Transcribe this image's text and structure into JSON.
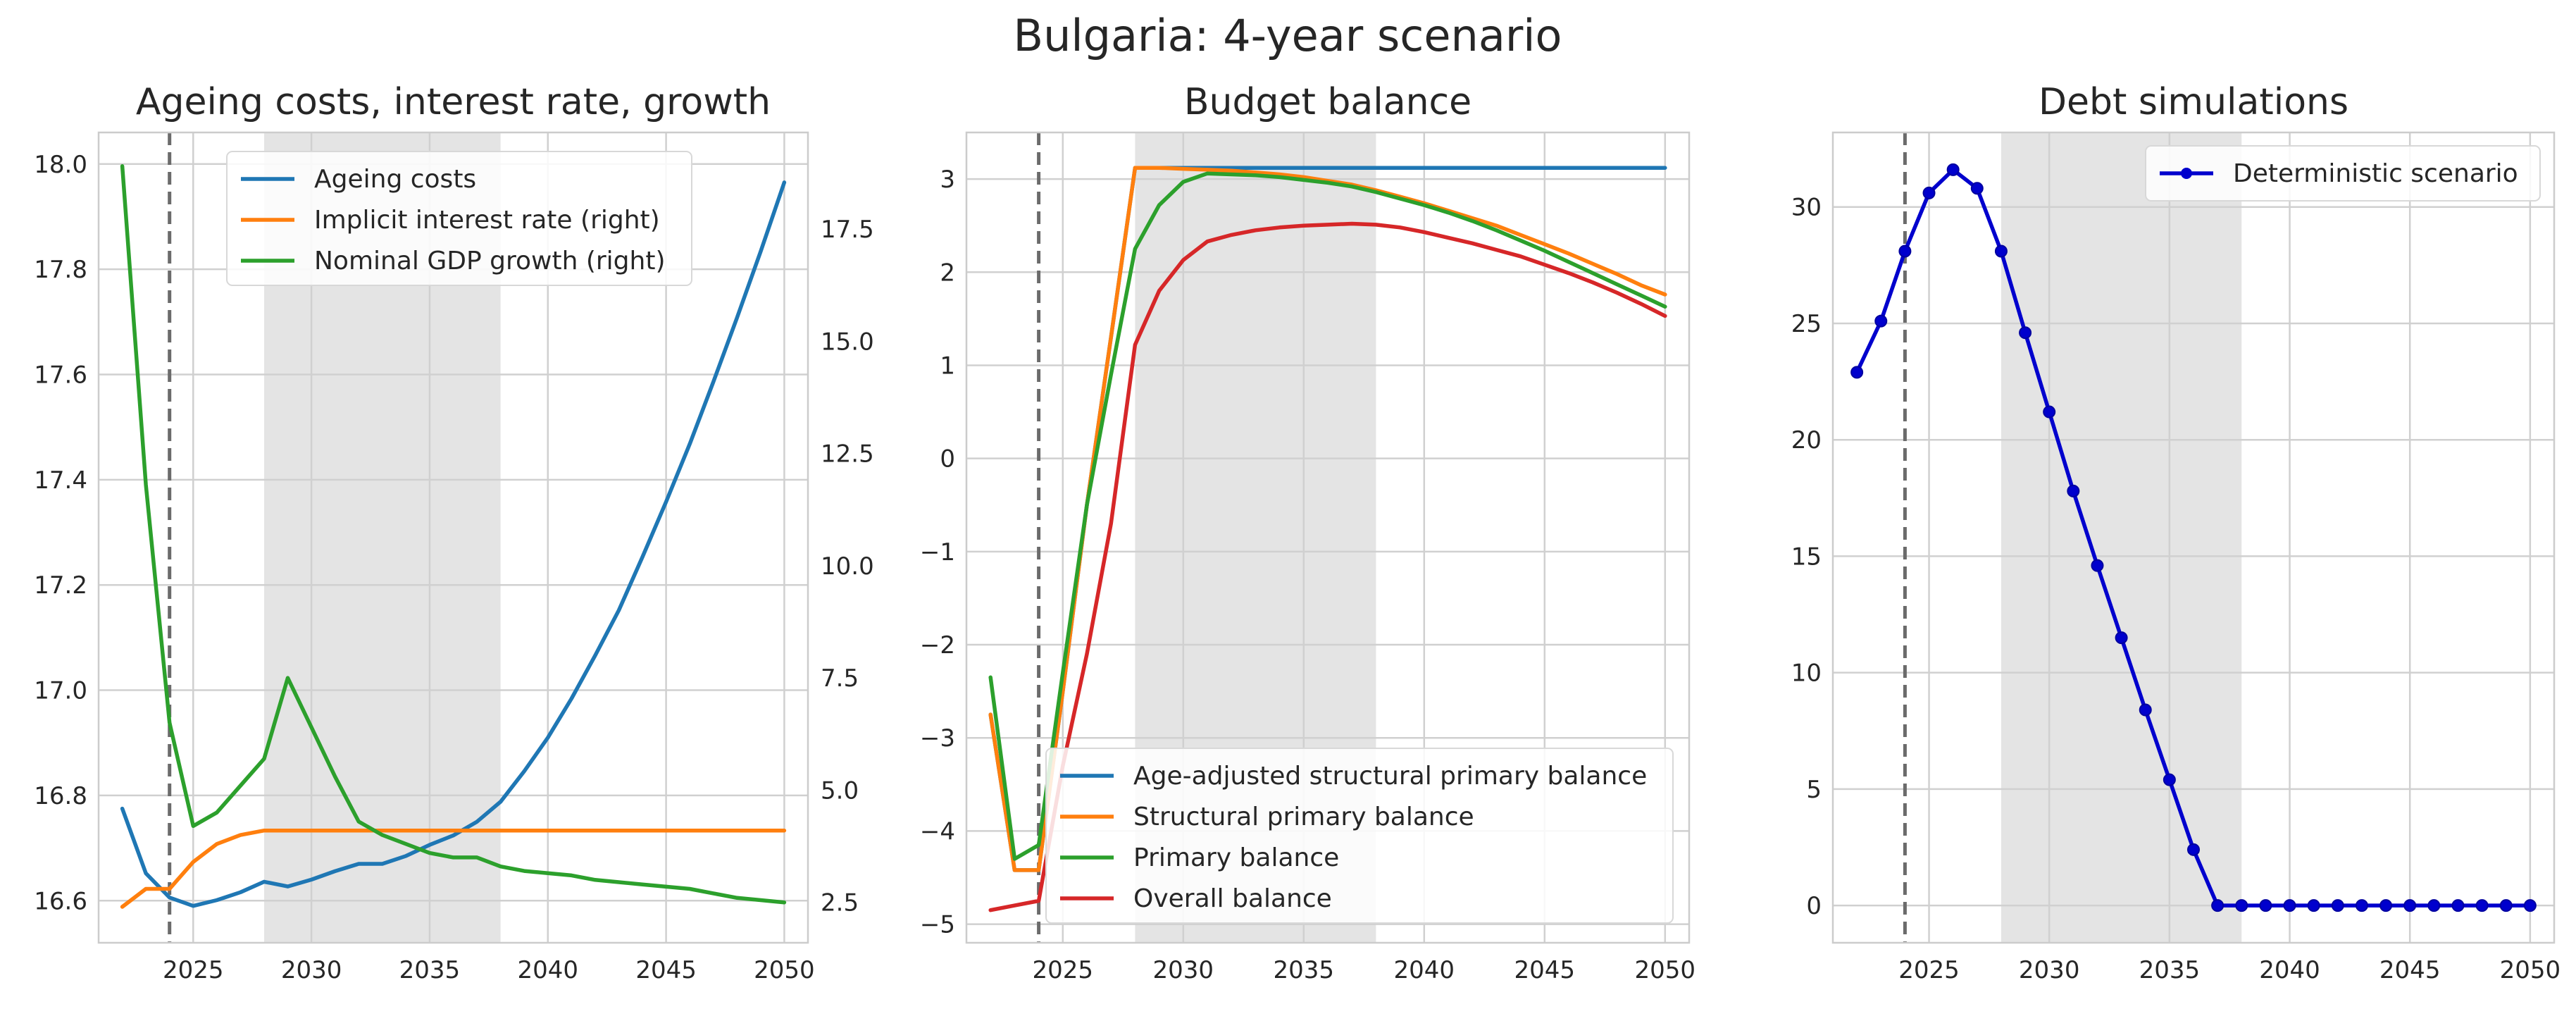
{
  "suptitle": "Bulgaria: 4-year scenario",
  "colors": {
    "blue": "#1f77b4",
    "orange": "#ff7f0e",
    "green": "#2ca02c",
    "red": "#d62728",
    "debt": "#0000cd",
    "grid": "#d0d0d0",
    "shade": "#e4e4e4",
    "vline": "#6b6b6b"
  },
  "chart_data": [
    {
      "type": "line",
      "title": "Ageing costs, interest rate, growth",
      "xlim": [
        2021,
        2051
      ],
      "ylim": [
        16.52,
        18.06
      ],
      "y2lim": [
        1.6,
        19.65
      ],
      "xticks": [
        2025,
        2030,
        2035,
        2040,
        2045,
        2050
      ],
      "yticks": [
        16.6,
        16.8,
        17.0,
        17.2,
        17.4,
        17.6,
        17.8,
        18.0
      ],
      "yticklabels": [
        "16.6",
        "16.8",
        "17.0",
        "17.2",
        "17.4",
        "17.6",
        "17.8",
        "18.0"
      ],
      "y2ticks": [
        2.5,
        5.0,
        7.5,
        10.0,
        12.5,
        15.0,
        17.5
      ],
      "y2ticklabels": [
        "2.5",
        "5.0",
        "7.5",
        "10.0",
        "12.5",
        "15.0",
        "17.5"
      ],
      "vline": 2024,
      "shade": [
        2028,
        2038
      ],
      "grid": true,
      "legend": "top-center",
      "x": [
        2022,
        2023,
        2024,
        2025,
        2026,
        2027,
        2028,
        2029,
        2030,
        2031,
        2032,
        2033,
        2034,
        2035,
        2036,
        2037,
        2038,
        2039,
        2040,
        2041,
        2042,
        2043,
        2044,
        2045,
        2046,
        2047,
        2048,
        2049,
        2050
      ],
      "series": [
        {
          "name": "Ageing costs",
          "color": "blue",
          "axis": "left",
          "values": [
            16.775,
            16.652,
            16.606,
            16.59,
            16.601,
            16.616,
            16.636,
            16.627,
            16.64,
            16.656,
            16.67,
            16.67,
            16.685,
            16.706,
            16.724,
            16.75,
            16.788,
            16.846,
            16.91,
            16.984,
            17.066,
            17.152,
            17.253,
            17.358,
            17.468,
            17.586,
            17.708,
            17.834,
            17.965
          ]
        },
        {
          "name": "Implicit interest rate (right)",
          "color": "orange",
          "axis": "right",
          "values": [
            2.4,
            2.8,
            2.8,
            3.4,
            3.8,
            4.0,
            4.1,
            4.1,
            4.1,
            4.1,
            4.1,
            4.1,
            4.1,
            4.1,
            4.1,
            4.1,
            4.1,
            4.1,
            4.1,
            4.1,
            4.1,
            4.1,
            4.1,
            4.1,
            4.1,
            4.1,
            4.1,
            4.1,
            4.1
          ]
        },
        {
          "name": "Nominal GDP growth (right)",
          "color": "green",
          "axis": "right",
          "values": [
            18.9,
            11.8,
            6.5,
            4.2,
            4.5,
            5.1,
            5.7,
            7.5,
            6.4,
            5.3,
            4.3,
            4.0,
            3.8,
            3.6,
            3.5,
            3.5,
            3.3,
            3.2,
            3.15,
            3.1,
            3.0,
            2.95,
            2.9,
            2.85,
            2.8,
            2.7,
            2.6,
            2.55,
            2.5
          ]
        }
      ]
    },
    {
      "type": "line",
      "title": "Budget balance",
      "xlim": [
        2021,
        2051
      ],
      "ylim": [
        -5.2,
        3.5
      ],
      "xticks": [
        2025,
        2030,
        2035,
        2040,
        2045,
        2050
      ],
      "yticks": [
        -5,
        -4,
        -3,
        -2,
        -1,
        0,
        1,
        2,
        3
      ],
      "yticklabels": [
        "−5",
        "−4",
        "−3",
        "−2",
        "−1",
        "0",
        "1",
        "2",
        "3"
      ],
      "vline": 2024,
      "shade": [
        2028,
        2038
      ],
      "grid": true,
      "legend": "lower-right",
      "x": [
        2022,
        2023,
        2024,
        2025,
        2026,
        2027,
        2028,
        2029,
        2030,
        2031,
        2032,
        2033,
        2034,
        2035,
        2036,
        2037,
        2038,
        2039,
        2040,
        2041,
        2042,
        2043,
        2044,
        2045,
        2046,
        2047,
        2048,
        2049,
        2050
      ],
      "series": [
        {
          "name": "Age-adjusted structural primary balance",
          "color": "blue",
          "values": [
            -2.75,
            -4.42,
            -4.42,
            -2.5,
            -0.5,
            1.3,
            3.12,
            3.12,
            3.12,
            3.12,
            3.12,
            3.12,
            3.12,
            3.12,
            3.12,
            3.12,
            3.12,
            3.12,
            3.12,
            3.12,
            3.12,
            3.12,
            3.12,
            3.12,
            3.12,
            3.12,
            3.12,
            3.12,
            3.12
          ]
        },
        {
          "name": "Structural primary balance",
          "color": "orange",
          "values": [
            -2.75,
            -4.42,
            -4.42,
            -2.5,
            -0.5,
            1.3,
            3.12,
            3.12,
            3.11,
            3.1,
            3.09,
            3.07,
            3.05,
            3.02,
            2.98,
            2.94,
            2.88,
            2.81,
            2.74,
            2.66,
            2.58,
            2.5,
            2.4,
            2.3,
            2.2,
            2.09,
            1.98,
            1.86,
            1.76
          ]
        },
        {
          "name": "Primary balance",
          "color": "green",
          "values": [
            -2.35,
            -4.3,
            -4.15,
            -2.3,
            -0.5,
            0.9,
            2.25,
            2.72,
            2.97,
            3.06,
            3.05,
            3.04,
            3.02,
            2.99,
            2.96,
            2.92,
            2.86,
            2.79,
            2.72,
            2.64,
            2.55,
            2.45,
            2.34,
            2.23,
            2.11,
            1.99,
            1.87,
            1.75,
            1.63
          ]
        },
        {
          "name": "Overall balance",
          "color": "red",
          "values": [
            -4.85,
            -4.8,
            -4.75,
            -3.3,
            -2.1,
            -0.7,
            1.22,
            1.8,
            2.13,
            2.33,
            2.4,
            2.45,
            2.48,
            2.5,
            2.51,
            2.52,
            2.51,
            2.48,
            2.43,
            2.37,
            2.31,
            2.24,
            2.17,
            2.08,
            1.99,
            1.89,
            1.78,
            1.66,
            1.53
          ]
        }
      ]
    },
    {
      "type": "line",
      "title": "Debt simulations",
      "xlim": [
        2021,
        2051
      ],
      "ylim": [
        -1.6,
        33.2
      ],
      "xticks": [
        2025,
        2030,
        2035,
        2040,
        2045,
        2050
      ],
      "yticks": [
        0,
        5,
        10,
        15,
        20,
        25,
        30
      ],
      "yticklabels": [
        "0",
        "5",
        "10",
        "15",
        "20",
        "25",
        "30"
      ],
      "vline": 2024,
      "shade": [
        2028,
        2038
      ],
      "grid": true,
      "legend": "top-right",
      "markers": true,
      "x": [
        2022,
        2023,
        2024,
        2025,
        2026,
        2027,
        2028,
        2029,
        2030,
        2031,
        2032,
        2033,
        2034,
        2035,
        2036,
        2037,
        2038,
        2039,
        2040,
        2041,
        2042,
        2043,
        2044,
        2045,
        2046,
        2047,
        2048,
        2049,
        2050
      ],
      "series": [
        {
          "name": "Deterministic scenario",
          "color": "debt",
          "values": [
            22.9,
            25.1,
            28.1,
            30.6,
            31.6,
            30.8,
            28.1,
            24.6,
            21.2,
            17.8,
            14.6,
            11.5,
            8.4,
            5.4,
            2.4,
            0,
            0,
            0,
            0,
            0,
            0,
            0,
            0,
            0,
            0,
            0,
            0,
            0,
            0
          ]
        }
      ]
    }
  ]
}
